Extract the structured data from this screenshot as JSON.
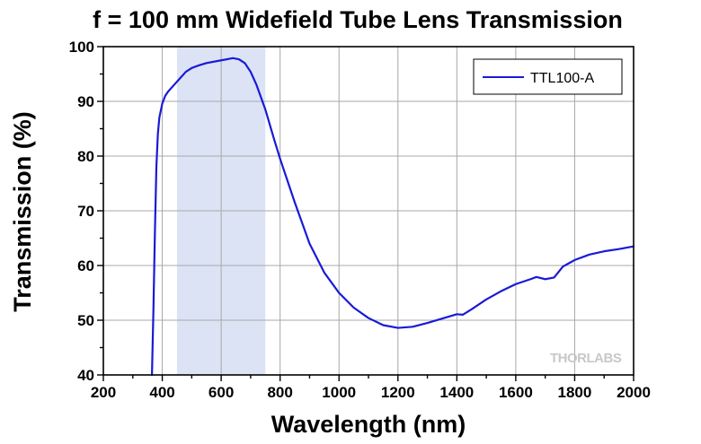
{
  "chart_data": {
    "type": "line",
    "title": "f = 100 mm Widefield Tube Lens Transmission",
    "xlabel": "Wavelength (nm)",
    "ylabel": "Transmission (%)",
    "xlim": [
      200,
      2000
    ],
    "ylim": [
      40,
      100
    ],
    "x_ticks": [
      "200",
      "400",
      "600",
      "800",
      "1000",
      "1200",
      "1400",
      "1600",
      "1800",
      "2000"
    ],
    "y_ticks": [
      "40",
      "50",
      "60",
      "70",
      "80",
      "90",
      "100"
    ],
    "x_tick_values": [
      200,
      400,
      600,
      800,
      1000,
      1200,
      1400,
      1600,
      1800,
      2000
    ],
    "y_tick_values": [
      40,
      50,
      60,
      70,
      80,
      90,
      100
    ],
    "x_minor_step": 100,
    "y_minor_step": 5,
    "grid": true,
    "highlight_band": {
      "from": 450,
      "to": 750,
      "color": "#dbe3f5"
    },
    "legend": {
      "position": "top-right",
      "entries": [
        "TTL100-A"
      ]
    },
    "watermark": "THORLABS",
    "series": [
      {
        "name": "TTL100-A",
        "color": "#1a1ad6",
        "x": [
          365,
          370,
          375,
          380,
          385,
          390,
          400,
          410,
          420,
          440,
          460,
          480,
          500,
          520,
          550,
          600,
          640,
          660,
          680,
          700,
          720,
          750,
          780,
          800,
          850,
          900,
          950,
          1000,
          1050,
          1100,
          1150,
          1200,
          1250,
          1300,
          1350,
          1400,
          1420,
          1450,
          1500,
          1550,
          1600,
          1650,
          1670,
          1700,
          1730,
          1760,
          1800,
          1850,
          1900,
          1950,
          2000
        ],
        "y": [
          40,
          52,
          66,
          78,
          84,
          87,
          89.6,
          91,
          91.8,
          93,
          94.2,
          95.4,
          96.1,
          96.5,
          97,
          97.5,
          97.9,
          97.7,
          97,
          95.4,
          93,
          88.5,
          83,
          79.5,
          71.5,
          64,
          58.7,
          55,
          52.3,
          50.4,
          49.1,
          48.6,
          48.8,
          49.5,
          50.3,
          51.1,
          51,
          52,
          53.8,
          55.3,
          56.6,
          57.5,
          57.9,
          57.5,
          57.8,
          59.8,
          61,
          62,
          62.6,
          63,
          63.5
        ]
      }
    ]
  }
}
